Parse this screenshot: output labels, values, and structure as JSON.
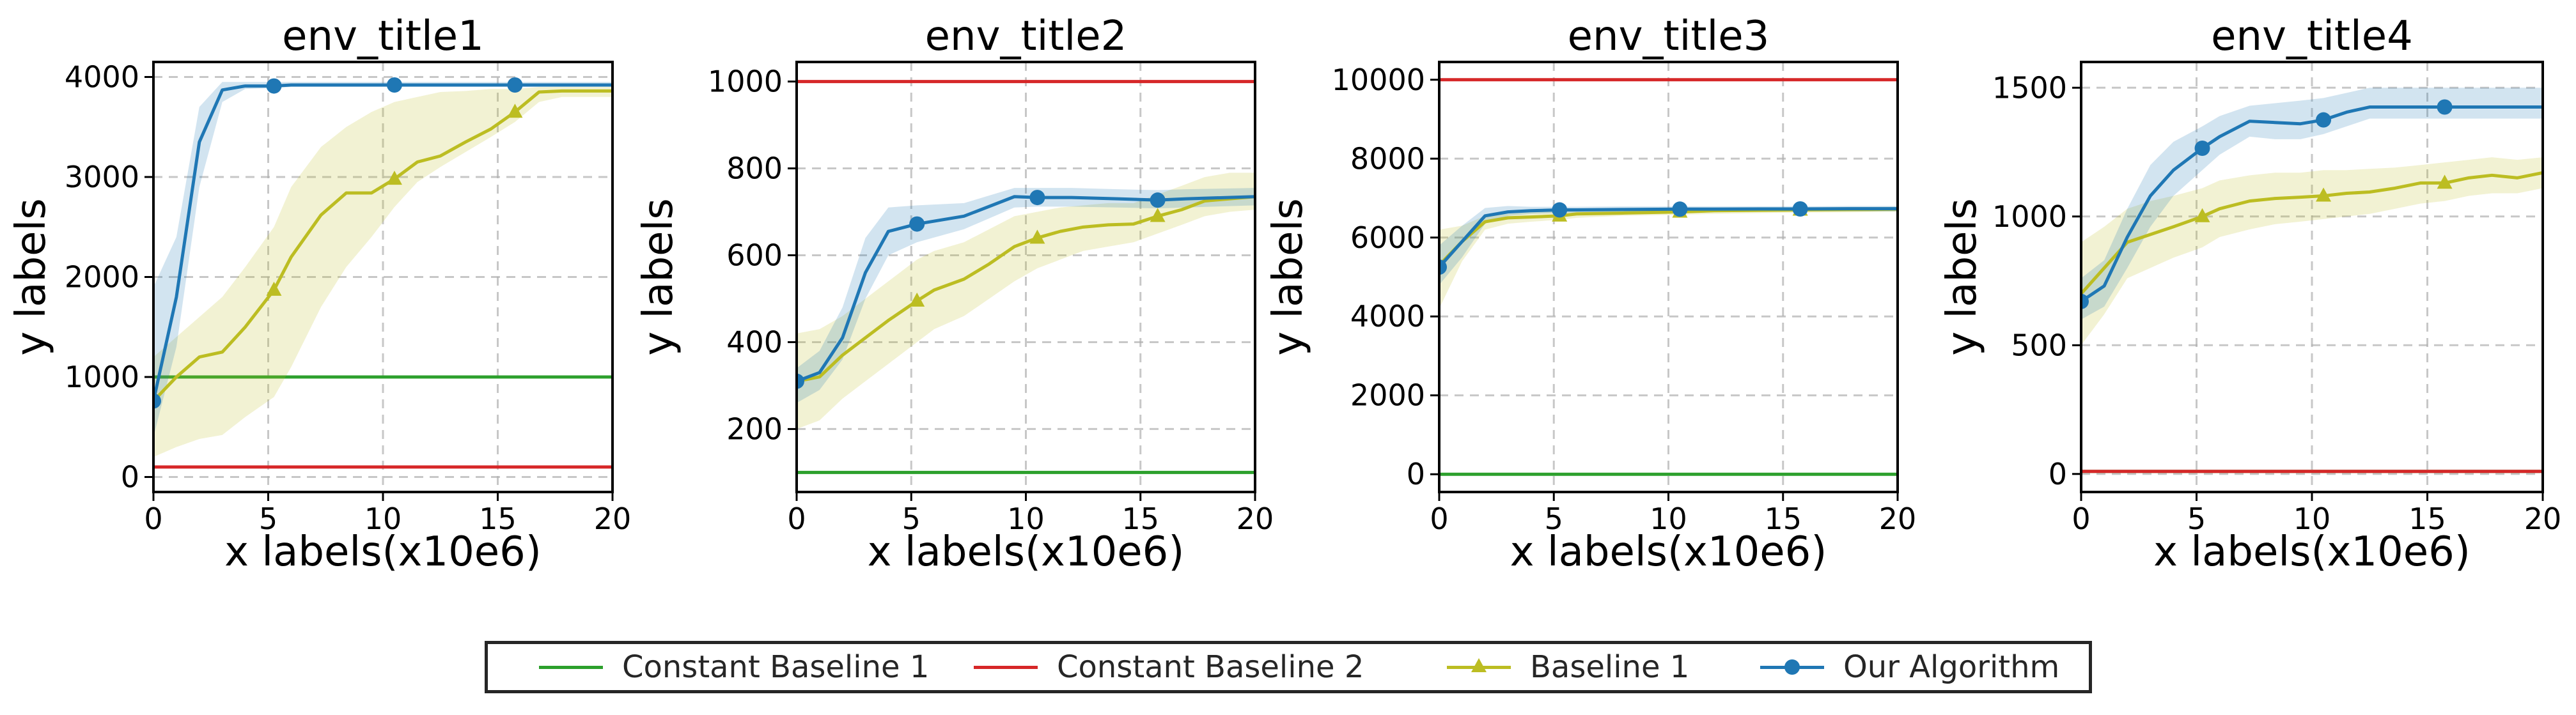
{
  "chart_data": [
    {
      "type": "line",
      "title": "env_title1",
      "xlabel": "x labels(x10e6)",
      "ylabel": "y labels",
      "xlim": [
        0,
        20
      ],
      "ylim": [
        -150,
        4150
      ],
      "xticks": [
        0,
        5,
        10,
        15,
        20
      ],
      "yticks": [
        0,
        1000,
        2000,
        3000,
        4000
      ],
      "grid": true,
      "constants": [
        {
          "name": "Constant Baseline 1",
          "value": 1000
        },
        {
          "name": "Constant Baseline 2",
          "value": 100
        }
      ],
      "series": [
        {
          "name": "Baseline 1",
          "x": [
            0,
            1,
            2,
            3,
            4,
            5.25,
            6,
            7.3,
            8.4,
            9.5,
            10.5,
            11.5,
            12.5,
            13.6,
            14.7,
            15.75,
            16.8,
            17.8,
            18.9,
            20
          ],
          "y": [
            760,
            1000,
            1200,
            1250,
            1500,
            1870,
            2200,
            2620,
            2840,
            2840,
            2980,
            3150,
            3210,
            3350,
            3480,
            3650,
            3850,
            3860,
            3860,
            3860
          ],
          "lower": [
            200,
            300,
            380,
            420,
            600,
            800,
            1100,
            1700,
            2100,
            2400,
            2700,
            2950,
            3100,
            3250,
            3400,
            3550,
            3750,
            3800,
            3800,
            3800
          ],
          "upper": [
            1200,
            1400,
            1600,
            1800,
            2100,
            2500,
            2900,
            3300,
            3500,
            3650,
            3750,
            3800,
            3850,
            3860,
            3880,
            3880,
            3900,
            3900,
            3900,
            3900
          ],
          "markers_at": [
            5.25,
            10.5,
            15.75
          ]
        },
        {
          "name": "Our Algorithm",
          "x": [
            0,
            1,
            2,
            3,
            4,
            5.25,
            6,
            8,
            10.5,
            12,
            14,
            15.75,
            18,
            20
          ],
          "y": [
            760,
            1800,
            3350,
            3870,
            3910,
            3910,
            3920,
            3920,
            3920,
            3920,
            3920,
            3920,
            3920,
            3920
          ],
          "lower": [
            400,
            1300,
            2900,
            3750,
            3880,
            3890,
            3900,
            3900,
            3900,
            3900,
            3900,
            3900,
            3900,
            3900
          ],
          "upper": [
            1900,
            2400,
            3700,
            3950,
            3950,
            3950,
            3950,
            3950,
            3950,
            3950,
            3950,
            3950,
            3950,
            3950
          ],
          "markers_at": [
            0,
            5.25,
            10.5,
            15.75
          ]
        }
      ]
    },
    {
      "type": "line",
      "title": "env_title2",
      "xlabel": "x labels(x10e6)",
      "ylabel": "y labels",
      "xlim": [
        0,
        20
      ],
      "ylim": [
        55,
        1045
      ],
      "xticks": [
        0,
        5,
        10,
        15,
        20
      ],
      "yticks": [
        200,
        400,
        600,
        800,
        1000
      ],
      "grid": true,
      "constants": [
        {
          "name": "Constant Baseline 1",
          "value": 100
        },
        {
          "name": "Constant Baseline 2",
          "value": 1000
        }
      ],
      "series": [
        {
          "name": "Baseline 1",
          "x": [
            0,
            1,
            2,
            3,
            4,
            5.25,
            6,
            7.3,
            8.4,
            9.5,
            10.5,
            11.5,
            12.5,
            13.6,
            14.7,
            15.75,
            16.8,
            17.8,
            18.9,
            20
          ],
          "y": [
            310,
            320,
            370,
            410,
            450,
            495,
            520,
            545,
            580,
            620,
            640,
            655,
            665,
            670,
            672,
            690,
            705,
            725,
            730,
            735
          ],
          "lower": [
            200,
            220,
            270,
            310,
            350,
            400,
            430,
            460,
            500,
            540,
            570,
            590,
            610,
            620,
            630,
            650,
            670,
            690,
            700,
            705
          ],
          "upper": [
            420,
            430,
            460,
            500,
            540,
            590,
            610,
            630,
            660,
            690,
            700,
            710,
            715,
            720,
            720,
            740,
            760,
            780,
            790,
            790
          ],
          "markers_at": [
            5.25,
            10.5,
            15.75
          ]
        },
        {
          "name": "Our Algorithm",
          "x": [
            0,
            1,
            2,
            3,
            4,
            5.25,
            7.3,
            9.5,
            10.5,
            12,
            14,
            15.75,
            17,
            20
          ],
          "y": [
            310,
            330,
            410,
            560,
            655,
            672,
            690,
            735,
            733,
            733,
            730,
            727,
            730,
            735
          ],
          "lower": [
            260,
            290,
            360,
            500,
            600,
            630,
            660,
            710,
            712,
            712,
            710,
            708,
            710,
            715
          ],
          "upper": [
            340,
            380,
            480,
            640,
            710,
            715,
            720,
            755,
            755,
            755,
            752,
            750,
            752,
            755
          ],
          "markers_at": [
            0,
            5.25,
            10.5,
            15.75
          ]
        }
      ]
    },
    {
      "type": "line",
      "title": "env_title3",
      "xlabel": "x labels(x10e6)",
      "ylabel": "y labels",
      "xlim": [
        0,
        20
      ],
      "ylim": [
        -450,
        10450
      ],
      "xticks": [
        0,
        5,
        10,
        15,
        20
      ],
      "yticks": [
        0,
        2000,
        4000,
        6000,
        8000,
        10000
      ],
      "grid": true,
      "constants": [
        {
          "name": "Constant Baseline 1",
          "value": 0
        },
        {
          "name": "Constant Baseline 2",
          "value": 10000
        }
      ],
      "series": [
        {
          "name": "Baseline 1",
          "x": [
            0,
            1,
            2,
            3,
            4,
            5.25,
            6,
            8,
            10.5,
            12,
            14,
            15.75,
            18,
            20
          ],
          "y": [
            5300,
            5900,
            6400,
            6500,
            6520,
            6550,
            6600,
            6620,
            6650,
            6680,
            6690,
            6700,
            6710,
            6720
          ],
          "lower": [
            4200,
            5400,
            6200,
            6350,
            6400,
            6450,
            6500,
            6550,
            6580,
            6600,
            6620,
            6630,
            6640,
            6650
          ],
          "upper": [
            6200,
            6300,
            6550,
            6600,
            6650,
            6680,
            6700,
            6720,
            6730,
            6740,
            6750,
            6760,
            6770,
            6780
          ],
          "markers_at": [
            5.25,
            10.5,
            15.75
          ]
        },
        {
          "name": "Our Algorithm",
          "x": [
            0,
            1,
            2,
            3,
            4,
            5.25,
            6,
            8,
            10.5,
            12,
            14,
            15.75,
            18,
            20
          ],
          "y": [
            5250,
            5900,
            6550,
            6650,
            6680,
            6700,
            6700,
            6710,
            6720,
            6720,
            6725,
            6725,
            6730,
            6730
          ],
          "lower": [
            4800,
            5500,
            6350,
            6550,
            6600,
            6620,
            6630,
            6640,
            6650,
            6650,
            6660,
            6660,
            6660,
            6660
          ],
          "upper": [
            5800,
            6300,
            6750,
            6800,
            6780,
            6780,
            6780,
            6790,
            6790,
            6790,
            6790,
            6790,
            6800,
            6800
          ],
          "markers_at": [
            0,
            5.25,
            10.5,
            15.75
          ]
        }
      ]
    },
    {
      "type": "line",
      "title": "env_title4",
      "xlabel": "x labels(x10e6)",
      "ylabel": "y labels",
      "xlim": [
        0,
        20
      ],
      "ylim": [
        -70,
        1600
      ],
      "xticks": [
        0,
        5,
        10,
        15,
        20
      ],
      "yticks": [
        0,
        500,
        1000,
        1500
      ],
      "grid": true,
      "constants": [
        {
          "name": "Constant Baseline 1",
          "value": 10
        },
        {
          "name": "Constant Baseline 2",
          "value": 10
        }
      ],
      "series": [
        {
          "name": "Baseline 1",
          "x": [
            0,
            1,
            2,
            3,
            4,
            5.25,
            6,
            7.3,
            8.4,
            9.5,
            10.5,
            11.5,
            12.5,
            13.6,
            14.7,
            15.75,
            16.8,
            17.8,
            18.9,
            20
          ],
          "y": [
            700,
            800,
            900,
            930,
            960,
            1000,
            1030,
            1060,
            1070,
            1075,
            1080,
            1090,
            1095,
            1110,
            1130,
            1130,
            1150,
            1160,
            1150,
            1170
          ],
          "lower": [
            500,
            620,
            760,
            800,
            840,
            880,
            920,
            950,
            970,
            980,
            990,
            1000,
            1010,
            1030,
            1050,
            1060,
            1080,
            1090,
            1090,
            1110
          ],
          "upper": [
            900,
            960,
            1030,
            1060,
            1080,
            1110,
            1140,
            1160,
            1170,
            1170,
            1180,
            1180,
            1185,
            1190,
            1200,
            1210,
            1220,
            1230,
            1220,
            1230
          ],
          "markers_at": [
            5.25,
            10.5,
            15.75
          ]
        },
        {
          "name": "Our Algorithm",
          "x": [
            0,
            1,
            2,
            3,
            4,
            5.25,
            6,
            7.3,
            8.4,
            9.5,
            10.5,
            11.5,
            12.5,
            13.6,
            14.7,
            15.75,
            17,
            18.9,
            20
          ],
          "y": [
            670,
            730,
            920,
            1080,
            1180,
            1265,
            1310,
            1370,
            1365,
            1360,
            1375,
            1405,
            1425,
            1425,
            1425,
            1425,
            1425,
            1425,
            1425
          ],
          "lower": [
            600,
            650,
            800,
            960,
            1080,
            1180,
            1240,
            1310,
            1300,
            1300,
            1320,
            1350,
            1380,
            1380,
            1380,
            1380,
            1380,
            1380,
            1380
          ],
          "upper": [
            760,
            830,
            1030,
            1200,
            1290,
            1350,
            1390,
            1430,
            1440,
            1450,
            1460,
            1480,
            1500,
            1500,
            1500,
            1500,
            1500,
            1500,
            1500
          ],
          "markers_at": [
            0,
            5.25,
            10.5,
            15.75
          ]
        }
      ]
    }
  ],
  "legend": {
    "placement": "bottom-center",
    "entries": [
      {
        "label": "Constant Baseline 1",
        "color": "#2ca02c",
        "marker": "none"
      },
      {
        "label": "Constant Baseline 2",
        "color": "#d62728",
        "marker": "none"
      },
      {
        "label": "Baseline 1",
        "color": "#bcbd22",
        "marker": "triangle"
      },
      {
        "label": "Our Algorithm",
        "color": "#1f77b4",
        "marker": "circle"
      }
    ]
  },
  "colors": {
    "constant1": "#2ca02c",
    "constant2": "#d62728",
    "baseline1": "#bcbd22",
    "ours": "#1f77b4",
    "grid": "#b0b0b0",
    "axis": "#000000"
  }
}
